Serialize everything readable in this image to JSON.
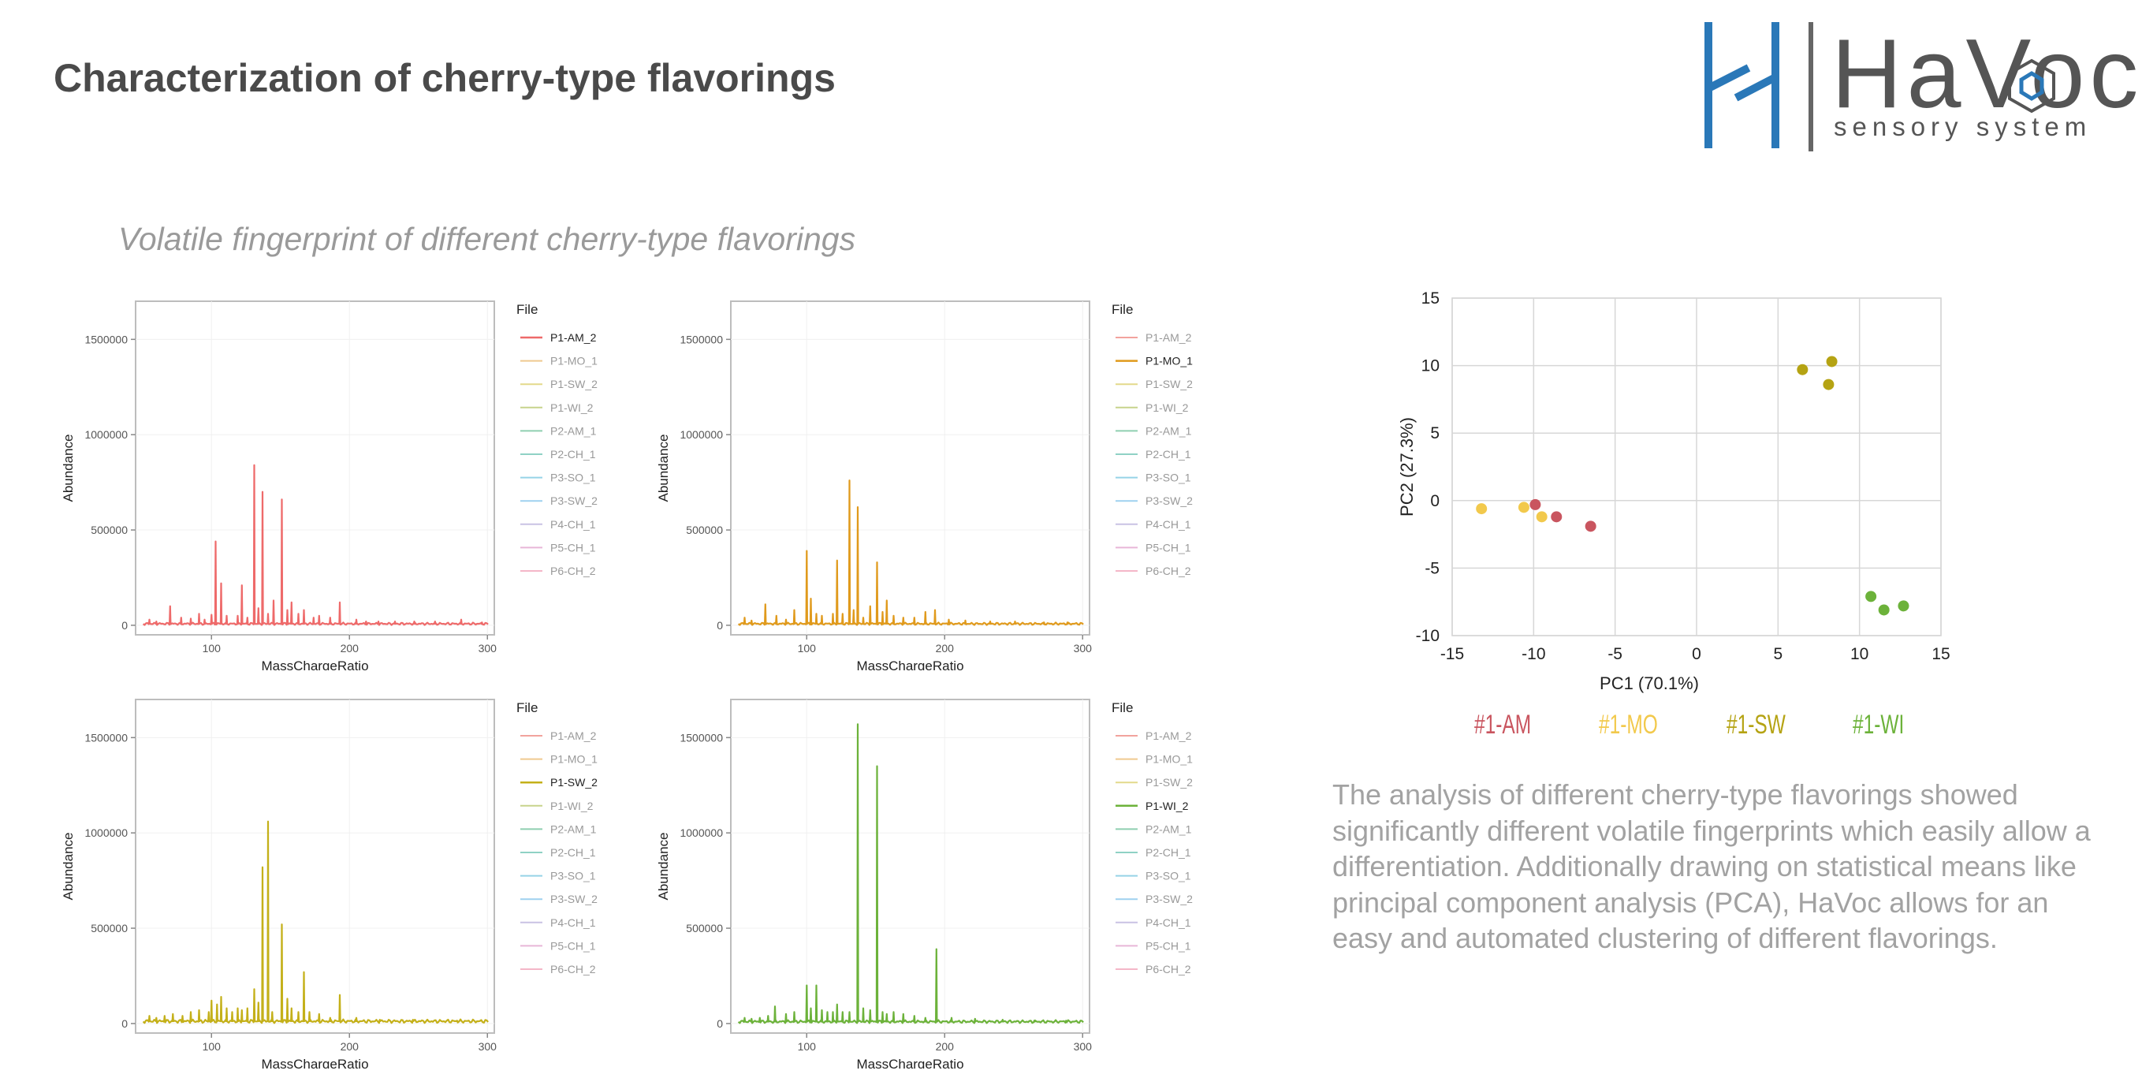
{
  "page": {
    "title": "Characterization of cherry-type flavorings",
    "subtitle": "Volatile fingerprint of different cherry-type flavorings",
    "description": "The analysis of different cherry-type flavorings showed significantly different volatile fingerprints which easily allow a differentiation. Additionally drawing on statistical means like principal component analysis (PCA), HaVoc allows for an easy and automated clustering of different flavorings."
  },
  "logo": {
    "name": "HaVoc",
    "tagline": "sensory system",
    "colors": {
      "blue": "#2a78b8",
      "gray": "#555555"
    }
  },
  "legend_files": [
    "P1-AM_2",
    "P1-MO_1",
    "P1-SW_2",
    "P1-WI_2",
    "P2-AM_1",
    "P2-CH_1",
    "P3-SO_1",
    "P3-SW_2",
    "P4-CH_1",
    "P5-CH_1",
    "P6-CH_2"
  ],
  "legend_file_colors": [
    "#f2a39d",
    "#efc98f",
    "#e3d98b",
    "#c7d38c",
    "#8fcfb0",
    "#8fd1c5",
    "#96d3e6",
    "#9fd1ef",
    "#c9c2e4",
    "#e8b6d8",
    "#f4b7c8"
  ],
  "chart_data": [
    {
      "type": "line",
      "legend_title": "File",
      "active_file": "P1-AM_2",
      "color": "#ee6a6a",
      "xlabel": "MassChargeRatio",
      "ylabel": "Abundance",
      "xlim": [
        45,
        305
      ],
      "ylim": [
        -50000,
        1700000
      ],
      "xticks": [
        100,
        200,
        300
      ],
      "yticks": [
        0,
        500000,
        1000000,
        1500000
      ],
      "baseline_xrange": [
        50,
        300
      ],
      "baseline_level": 8000,
      "peaks": [
        [
          55,
          30000
        ],
        [
          60,
          20000
        ],
        [
          70,
          100000
        ],
        [
          78,
          40000
        ],
        [
          85,
          35000
        ],
        [
          91,
          60000
        ],
        [
          95,
          30000
        ],
        [
          100,
          55000
        ],
        [
          103,
          440000
        ],
        [
          107,
          220000
        ],
        [
          111,
          50000
        ],
        [
          119,
          50000
        ],
        [
          122,
          210000
        ],
        [
          126,
          40000
        ],
        [
          131,
          840000
        ],
        [
          134,
          90000
        ],
        [
          137,
          700000
        ],
        [
          141,
          60000
        ],
        [
          145,
          130000
        ],
        [
          151,
          660000
        ],
        [
          155,
          80000
        ],
        [
          158,
          120000
        ],
        [
          163,
          60000
        ],
        [
          167,
          80000
        ],
        [
          174,
          40000
        ],
        [
          178,
          50000
        ],
        [
          186,
          40000
        ],
        [
          193,
          120000
        ],
        [
          205,
          30000
        ],
        [
          212,
          20000
        ],
        [
          221,
          20000
        ],
        [
          233,
          20000
        ],
        [
          247,
          20000
        ],
        [
          262,
          20000
        ],
        [
          281,
          30000
        ],
        [
          296,
          15000
        ]
      ]
    },
    {
      "type": "line",
      "legend_title": "File",
      "active_file": "P1-MO_1",
      "color": "#e09a1c",
      "xlabel": "MassChargeRatio",
      "ylabel": "Abundance",
      "xlim": [
        45,
        305
      ],
      "ylim": [
        -50000,
        1700000
      ],
      "xticks": [
        100,
        200,
        300
      ],
      "yticks": [
        0,
        500000,
        1000000,
        1500000
      ],
      "baseline_xrange": [
        50,
        300
      ],
      "baseline_level": 8000,
      "peaks": [
        [
          55,
          40000
        ],
        [
          60,
          25000
        ],
        [
          70,
          110000
        ],
        [
          78,
          50000
        ],
        [
          85,
          30000
        ],
        [
          91,
          80000
        ],
        [
          100,
          390000
        ],
        [
          103,
          140000
        ],
        [
          107,
          60000
        ],
        [
          111,
          50000
        ],
        [
          119,
          60000
        ],
        [
          122,
          340000
        ],
        [
          126,
          60000
        ],
        [
          131,
          760000
        ],
        [
          134,
          80000
        ],
        [
          137,
          620000
        ],
        [
          141,
          40000
        ],
        [
          146,
          100000
        ],
        [
          151,
          330000
        ],
        [
          155,
          70000
        ],
        [
          158,
          130000
        ],
        [
          163,
          50000
        ],
        [
          170,
          40000
        ],
        [
          178,
          40000
        ],
        [
          186,
          70000
        ],
        [
          193,
          80000
        ],
        [
          203,
          30000
        ],
        [
          215,
          25000
        ],
        [
          233,
          20000
        ],
        [
          251,
          20000
        ],
        [
          272,
          15000
        ],
        [
          289,
          15000
        ]
      ]
    },
    {
      "type": "line",
      "legend_title": "File",
      "active_file": "P1-SW_2",
      "color": "#c4b019",
      "xlabel": "MassChargeRatio",
      "ylabel": "Abundance",
      "xlim": [
        45,
        305
      ],
      "ylim": [
        -50000,
        1700000
      ],
      "xticks": [
        100,
        200,
        300
      ],
      "yticks": [
        0,
        500000,
        1000000,
        1500000
      ],
      "baseline_xrange": [
        50,
        300
      ],
      "baseline_level": 12000,
      "peaks": [
        [
          55,
          40000
        ],
        [
          60,
          30000
        ],
        [
          66,
          40000
        ],
        [
          72,
          50000
        ],
        [
          79,
          40000
        ],
        [
          85,
          60000
        ],
        [
          91,
          70000
        ],
        [
          98,
          60000
        ],
        [
          100,
          120000
        ],
        [
          104,
          100000
        ],
        [
          107,
          140000
        ],
        [
          111,
          80000
        ],
        [
          115,
          60000
        ],
        [
          119,
          80000
        ],
        [
          122,
          70000
        ],
        [
          126,
          80000
        ],
        [
          131,
          180000
        ],
        [
          134,
          110000
        ],
        [
          137,
          820000
        ],
        [
          141,
          1060000
        ],
        [
          144,
          60000
        ],
        [
          151,
          520000
        ],
        [
          155,
          130000
        ],
        [
          158,
          80000
        ],
        [
          163,
          60000
        ],
        [
          167,
          270000
        ],
        [
          171,
          60000
        ],
        [
          178,
          50000
        ],
        [
          186,
          30000
        ],
        [
          193,
          150000
        ],
        [
          205,
          30000
        ],
        [
          222,
          20000
        ],
        [
          246,
          20000
        ],
        [
          278,
          15000
        ]
      ]
    },
    {
      "type": "line",
      "legend_title": "File",
      "active_file": "P1-WI_2",
      "color": "#6cb23a",
      "xlabel": "MassChargeRatio",
      "ylabel": "Abundance",
      "xlim": [
        45,
        305
      ],
      "ylim": [
        -50000,
        1700000
      ],
      "xticks": [
        100,
        200,
        300
      ],
      "yticks": [
        0,
        500000,
        1000000,
        1500000
      ],
      "baseline_xrange": [
        50,
        300
      ],
      "baseline_level": 10000,
      "peaks": [
        [
          55,
          30000
        ],
        [
          60,
          25000
        ],
        [
          66,
          30000
        ],
        [
          72,
          40000
        ],
        [
          77,
          90000
        ],
        [
          85,
          50000
        ],
        [
          91,
          60000
        ],
        [
          100,
          200000
        ],
        [
          103,
          80000
        ],
        [
          107,
          200000
        ],
        [
          111,
          70000
        ],
        [
          115,
          60000
        ],
        [
          119,
          60000
        ],
        [
          122,
          100000
        ],
        [
          126,
          60000
        ],
        [
          131,
          60000
        ],
        [
          137,
          1570000
        ],
        [
          141,
          80000
        ],
        [
          146,
          70000
        ],
        [
          151,
          1350000
        ],
        [
          155,
          60000
        ],
        [
          158,
          50000
        ],
        [
          163,
          60000
        ],
        [
          170,
          50000
        ],
        [
          178,
          40000
        ],
        [
          186,
          30000
        ],
        [
          194,
          390000
        ],
        [
          205,
          30000
        ],
        [
          222,
          25000
        ],
        [
          242,
          20000
        ],
        [
          265,
          15000
        ],
        [
          288,
          15000
        ]
      ]
    },
    {
      "type": "scatter",
      "xlabel": "PC1 (70.1%)",
      "ylabel": "PC2 (27.3%)",
      "xlim": [
        -15,
        15
      ],
      "ylim": [
        -10,
        15
      ],
      "xticks": [
        -15,
        -10,
        -5,
        0,
        5,
        10,
        15
      ],
      "yticks": [
        -10,
        -5,
        0,
        5,
        10,
        15
      ],
      "grid": true,
      "legend_position": "bottom",
      "series": [
        {
          "name": "#1-AM",
          "color": "#c9555f",
          "points": [
            [
              -9.9,
              -0.3
            ],
            [
              -8.6,
              -1.2
            ],
            [
              -6.5,
              -1.9
            ]
          ]
        },
        {
          "name": "#1-MO",
          "color": "#f2c94c",
          "points": [
            [
              -13.2,
              -0.6
            ],
            [
              -10.6,
              -0.5
            ],
            [
              -9.5,
              -1.2
            ]
          ]
        },
        {
          "name": "#1-SW",
          "color": "#b5a313",
          "points": [
            [
              6.5,
              9.7
            ],
            [
              8.1,
              8.6
            ],
            [
              8.3,
              10.3
            ]
          ]
        },
        {
          "name": "#1-WI",
          "color": "#6cb23a",
          "points": [
            [
              10.7,
              -7.1
            ],
            [
              11.5,
              -8.1
            ],
            [
              12.7,
              -7.8
            ]
          ]
        }
      ]
    }
  ]
}
